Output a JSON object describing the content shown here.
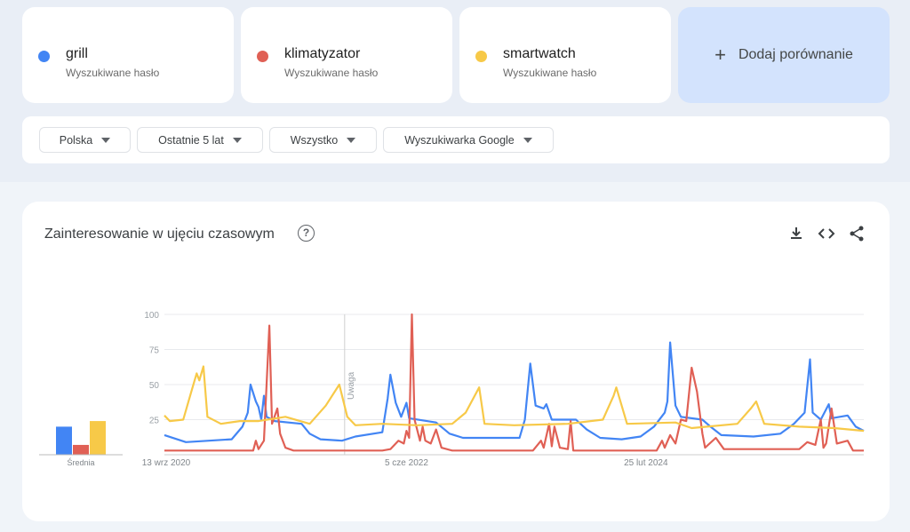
{
  "terms": [
    {
      "label": "grill",
      "sub": "Wyszukiwane hasło",
      "color": "#4285f4"
    },
    {
      "label": "klimatyzator",
      "sub": "Wyszukiwane hasło",
      "color": "#ea4335"
    },
    {
      "label": "smartwatch",
      "sub": "Wyszukiwane hasło",
      "color": "#fbbc04"
    }
  ],
  "add_comparison": "Dodaj porównanie",
  "filters": [
    "Polska",
    "Ostatnie 5 lat",
    "Wszystko",
    "Wyszukiwarka Google"
  ],
  "chart_title": "Zainteresowanie w ujęciu czasowym",
  "help": "?",
  "chart_data": {
    "type": "line",
    "title": "Zainteresowanie w ujęciu czasowym",
    "x_unit": "weeks since 13 wrz 2020",
    "xlim": [
      0,
      260
    ],
    "ylim": [
      0,
      100
    ],
    "yticks": [
      25,
      50,
      75,
      100
    ],
    "xticks": [
      {
        "week": 0,
        "label": "13 wrz 2020"
      },
      {
        "week": 90,
        "label": "5 cze 2022"
      },
      {
        "week": 179,
        "label": "25 lut 2024"
      }
    ],
    "annotation": {
      "week": 67,
      "label": "Uwaga"
    },
    "average_label": "Średnia",
    "averages": [
      20,
      7,
      24
    ],
    "series": [
      {
        "name": "grill",
        "color": "#4285f4",
        "points": [
          [
            0,
            14
          ],
          [
            8,
            9
          ],
          [
            25,
            11
          ],
          [
            29,
            20
          ],
          [
            31,
            30
          ],
          [
            32,
            50
          ],
          [
            34,
            38
          ],
          [
            35,
            34
          ],
          [
            36,
            25
          ],
          [
            37,
            42
          ],
          [
            38,
            27
          ],
          [
            41,
            24
          ],
          [
            51,
            22
          ],
          [
            54,
            15
          ],
          [
            58,
            11
          ],
          [
            66,
            10
          ],
          [
            71,
            13
          ],
          [
            81,
            16
          ],
          [
            83,
            40
          ],
          [
            84,
            57
          ],
          [
            86,
            37
          ],
          [
            88,
            27
          ],
          [
            90,
            37
          ],
          [
            91,
            26
          ],
          [
            101,
            23
          ],
          [
            106,
            15
          ],
          [
            111,
            12
          ],
          [
            132,
            12
          ],
          [
            134,
            25
          ],
          [
            136,
            65
          ],
          [
            138,
            35
          ],
          [
            141,
            33
          ],
          [
            142,
            36
          ],
          [
            144,
            25
          ],
          [
            153,
            25
          ],
          [
            157,
            18
          ],
          [
            162,
            12
          ],
          [
            170,
            11
          ],
          [
            177,
            13
          ],
          [
            182,
            20
          ],
          [
            186,
            30
          ],
          [
            187,
            38
          ],
          [
            188,
            80
          ],
          [
            190,
            35
          ],
          [
            192,
            27
          ],
          [
            200,
            25
          ],
          [
            203,
            20
          ],
          [
            207,
            14
          ],
          [
            219,
            13
          ],
          [
            229,
            15
          ],
          [
            234,
            22
          ],
          [
            238,
            30
          ],
          [
            240,
            68
          ],
          [
            241,
            30
          ],
          [
            244,
            25
          ],
          [
            247,
            36
          ],
          [
            248,
            26
          ],
          [
            254,
            28
          ],
          [
            257,
            20
          ],
          [
            260,
            17
          ]
        ]
      },
      {
        "name": "klimatyzator",
        "color": "#e06055",
        "points": [
          [
            0,
            3
          ],
          [
            31,
            3
          ],
          [
            33,
            3
          ],
          [
            34,
            10
          ],
          [
            35,
            4
          ],
          [
            37,
            10
          ],
          [
            39,
            92
          ],
          [
            40,
            22
          ],
          [
            42,
            33
          ],
          [
            43,
            15
          ],
          [
            45,
            5
          ],
          [
            48,
            3
          ],
          [
            81,
            3
          ],
          [
            84,
            4
          ],
          [
            87,
            10
          ],
          [
            89,
            8
          ],
          [
            90,
            17
          ],
          [
            91,
            12
          ],
          [
            92,
            100
          ],
          [
            93,
            25
          ],
          [
            95,
            10
          ],
          [
            96,
            20
          ],
          [
            97,
            10
          ],
          [
            99,
            8
          ],
          [
            101,
            18
          ],
          [
            103,
            5
          ],
          [
            107,
            3
          ],
          [
            137,
            3
          ],
          [
            140,
            10
          ],
          [
            141,
            5
          ],
          [
            143,
            22
          ],
          [
            144,
            6
          ],
          [
            145,
            20
          ],
          [
            147,
            5
          ],
          [
            150,
            4
          ],
          [
            151,
            24
          ],
          [
            152,
            3
          ],
          [
            183,
            3
          ],
          [
            185,
            10
          ],
          [
            186,
            5
          ],
          [
            188,
            14
          ],
          [
            190,
            8
          ],
          [
            192,
            25
          ],
          [
            194,
            24
          ],
          [
            196,
            62
          ],
          [
            198,
            45
          ],
          [
            200,
            15
          ],
          [
            201,
            5
          ],
          [
            205,
            12
          ],
          [
            208,
            4
          ],
          [
            236,
            4
          ],
          [
            239,
            9
          ],
          [
            242,
            7
          ],
          [
            244,
            25
          ],
          [
            245,
            5
          ],
          [
            246,
            8
          ],
          [
            248,
            33
          ],
          [
            250,
            8
          ],
          [
            254,
            10
          ],
          [
            256,
            3
          ],
          [
            260,
            3
          ]
        ]
      },
      {
        "name": "smartwatch",
        "color": "#f7c948",
        "points": [
          [
            0,
            28
          ],
          [
            2,
            24
          ],
          [
            7,
            25
          ],
          [
            10,
            45
          ],
          [
            12,
            58
          ],
          [
            13,
            53
          ],
          [
            14.5,
            63
          ],
          [
            16,
            27
          ],
          [
            21,
            22
          ],
          [
            28,
            24
          ],
          [
            35,
            24
          ],
          [
            45,
            27
          ],
          [
            54,
            22
          ],
          [
            60,
            35
          ],
          [
            65,
            50
          ],
          [
            68,
            27
          ],
          [
            71,
            21
          ],
          [
            81,
            22
          ],
          [
            94,
            21
          ],
          [
            107,
            22
          ],
          [
            112,
            30
          ],
          [
            117,
            48
          ],
          [
            119,
            22
          ],
          [
            130,
            21
          ],
          [
            150,
            22
          ],
          [
            163,
            25
          ],
          [
            167,
            42
          ],
          [
            168,
            48
          ],
          [
            172,
            22
          ],
          [
            190,
            23
          ],
          [
            196,
            19
          ],
          [
            213,
            22
          ],
          [
            218,
            33
          ],
          [
            220,
            38
          ],
          [
            223,
            22
          ],
          [
            236,
            20
          ],
          [
            249,
            19
          ],
          [
            260,
            17
          ]
        ]
      }
    ]
  }
}
